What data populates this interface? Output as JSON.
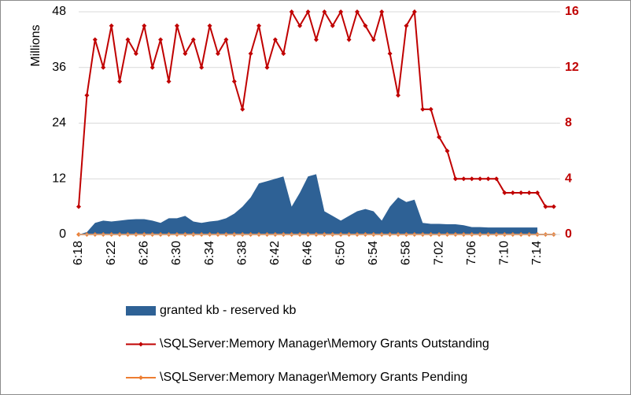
{
  "chart_data": {
    "type": "combo",
    "y_label": "Millions",
    "categories": [
      "6:18",
      null,
      null,
      null,
      "6:22",
      null,
      null,
      null,
      "6:26",
      null,
      null,
      null,
      "6:30",
      null,
      null,
      null,
      "6:34",
      null,
      null,
      null,
      "6:38",
      null,
      null,
      null,
      "6:42",
      null,
      null,
      null,
      "6:46",
      null,
      null,
      null,
      "6:50",
      null,
      null,
      null,
      "6:54",
      null,
      null,
      null,
      "6:58",
      null,
      null,
      null,
      "7:02",
      null,
      null,
      null,
      "7:06",
      null,
      null,
      null,
      "7:10",
      null,
      null,
      null,
      "7:14",
      null,
      null
    ],
    "series": [
      {
        "name": "granted kb - reserved kb",
        "type": "area",
        "color": "#2e6195",
        "values": [
          0,
          0.5,
          2.5,
          3,
          2.8,
          3,
          3.2,
          3.3,
          3.3,
          3,
          2.5,
          3.5,
          3.5,
          4,
          2.8,
          2.5,
          2.8,
          3,
          3.5,
          4.5,
          6,
          8,
          11,
          11.5,
          12,
          12.5,
          6,
          9,
          12.5,
          13,
          5,
          4,
          3,
          4,
          5,
          5.5,
          5,
          3,
          6,
          8,
          7,
          7.5,
          2.5,
          2.3,
          2.3,
          2.2,
          2.2,
          2,
          1.6,
          1.6,
          1.5,
          1.5,
          1.5,
          1.5,
          1.5,
          1.5,
          1.5,
          null,
          null
        ]
      },
      {
        "name": "\\SQLServer:Memory Manager\\Memory Grants Outstanding",
        "type": "line",
        "axis": "y2",
        "color": "#c00000",
        "values": [
          2,
          10,
          14,
          12,
          15,
          11,
          14,
          13,
          15,
          12,
          14,
          11,
          15,
          13,
          14,
          12,
          15,
          13,
          14,
          11,
          9,
          13,
          15,
          12,
          14,
          13,
          16,
          15,
          16,
          14,
          16,
          15,
          16,
          14,
          16,
          15,
          14,
          16,
          13,
          10,
          15,
          16,
          9,
          9,
          7,
          6,
          4,
          4,
          4,
          4,
          4,
          4,
          3,
          3,
          3,
          3,
          3,
          2,
          2
        ]
      },
      {
        "name": "\\SQLServer:Memory Manager\\Memory Grants Pending",
        "type": "line",
        "axis": "y2",
        "color": "#ed7d31",
        "values": [
          0,
          0,
          0,
          0,
          0,
          0,
          0,
          0,
          0,
          0,
          0,
          0,
          0,
          0,
          0,
          0,
          0,
          0,
          0,
          0,
          0,
          0,
          0,
          0,
          0,
          0,
          0,
          0,
          0,
          0,
          0,
          0,
          0,
          0,
          0,
          0,
          0,
          0,
          0,
          0,
          0,
          0,
          0,
          0,
          0,
          0,
          0,
          0,
          0,
          0,
          0,
          0,
          0,
          0,
          0,
          0,
          0,
          0,
          0
        ]
      }
    ],
    "ylim": [
      0,
      48
    ],
    "yticks": [
      0,
      12,
      24,
      36,
      48
    ],
    "y2lim": [
      0,
      16
    ],
    "y2ticks": [
      0,
      4,
      8,
      12,
      16
    ],
    "y2_tick_color": "#c00000",
    "grid": true,
    "legend": "bottom"
  }
}
